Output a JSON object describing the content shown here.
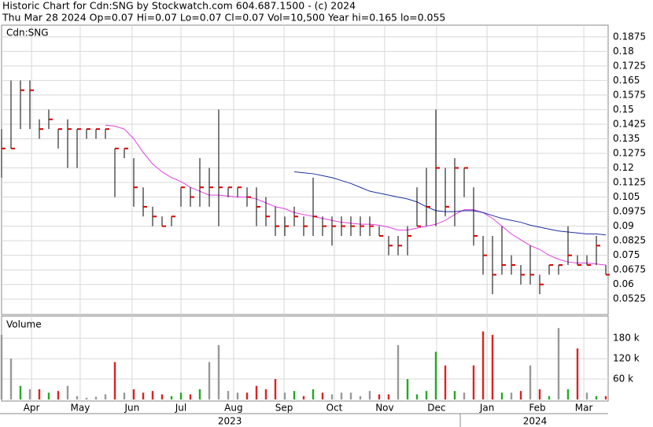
{
  "header": {
    "line1": "Historic Chart for Cdn:SNG by Stockwatch.com 604.687.1500 - (c) 2024",
    "line2": "Thu Mar 28 2024  Op=0.07  Hi=0.07  Lo=0.07  Cl=0.07  Vol=10,500  Year hi=0.165  lo=0.055"
  },
  "chart_data": [
    {
      "type": "ohlc",
      "label": "Cdn:SNG",
      "bar_color": "#000000",
      "close_color": "#dd0000",
      "grid": true,
      "x": [
        0,
        4,
        8,
        12,
        16,
        20,
        24,
        28,
        32,
        36,
        40,
        44,
        48,
        52,
        56,
        60,
        64,
        68,
        72,
        76,
        80,
        84,
        88,
        92,
        96,
        100,
        104,
        108,
        112,
        116,
        120,
        124,
        128,
        132,
        136,
        140,
        144,
        148,
        152,
        156,
        160,
        164,
        168,
        172,
        176,
        180,
        184,
        188,
        192,
        196,
        200,
        204,
        208,
        212,
        216,
        220,
        224,
        228,
        232,
        236,
        240,
        244,
        248,
        252,
        256
      ],
      "high": [
        0.14,
        0.165,
        0.165,
        0.165,
        0.145,
        0.15,
        0.14,
        0.145,
        0.14,
        0.14,
        0.14,
        0.14,
        0.13,
        0.13,
        0.125,
        0.11,
        0.1,
        0.095,
        0.095,
        0.11,
        0.11,
        0.125,
        0.12,
        0.15,
        0.11,
        0.11,
        0.11,
        0.11,
        0.105,
        0.1,
        0.095,
        0.1,
        0.095,
        0.115,
        0.095,
        0.095,
        0.095,
        0.095,
        0.095,
        0.095,
        0.09,
        0.085,
        0.085,
        0.09,
        0.11,
        0.12,
        0.15,
        0.12,
        0.125,
        0.12,
        0.11,
        0.085,
        0.085,
        0.09,
        0.075,
        0.07,
        0.08,
        0.065,
        0.07,
        0.07,
        0.09,
        0.075,
        0.075,
        0.085,
        0.07
      ],
      "low": [
        0.115,
        0.13,
        0.14,
        0.14,
        0.135,
        0.14,
        0.13,
        0.12,
        0.12,
        0.135,
        0.135,
        0.135,
        0.105,
        0.125,
        0.1,
        0.095,
        0.09,
        0.09,
        0.09,
        0.1,
        0.1,
        0.1,
        0.1,
        0.09,
        0.105,
        0.105,
        0.1,
        0.09,
        0.09,
        0.085,
        0.085,
        0.09,
        0.085,
        0.085,
        0.085,
        0.08,
        0.085,
        0.085,
        0.085,
        0.085,
        0.085,
        0.075,
        0.075,
        0.075,
        0.09,
        0.09,
        0.09,
        0.095,
        0.09,
        0.105,
        0.08,
        0.065,
        0.055,
        0.065,
        0.065,
        0.06,
        0.06,
        0.055,
        0.065,
        0.065,
        0.07,
        0.07,
        0.07,
        0.07,
        0.065
      ],
      "close": [
        0.13,
        0.13,
        0.16,
        0.16,
        0.14,
        0.145,
        0.14,
        0.14,
        0.14,
        0.14,
        0.14,
        0.14,
        0.13,
        0.13,
        0.11,
        0.1,
        0.095,
        0.09,
        0.095,
        0.11,
        0.105,
        0.11,
        0.11,
        0.11,
        0.11,
        0.11,
        0.105,
        0.1,
        0.095,
        0.09,
        0.09,
        0.095,
        0.09,
        0.095,
        0.09,
        0.09,
        0.09,
        0.09,
        0.09,
        0.09,
        0.085,
        0.08,
        0.08,
        0.085,
        0.09,
        0.1,
        0.12,
        0.1,
        0.12,
        0.12,
        0.085,
        0.075,
        0.065,
        0.07,
        0.07,
        0.065,
        0.065,
        0.06,
        0.07,
        0.07,
        0.075,
        0.07,
        0.07,
        0.08,
        0.065
      ],
      "moving_averages": [
        {
          "color": "#e040e0",
          "values": [
            null,
            null,
            null,
            null,
            null,
            null,
            null,
            null,
            null,
            null,
            null,
            0.142,
            0.1415,
            0.14,
            0.135,
            0.128,
            0.122,
            0.118,
            0.115,
            0.113,
            0.11,
            0.108,
            0.106,
            0.106,
            0.1055,
            0.105,
            0.105,
            0.104,
            0.102,
            0.1,
            0.099,
            0.097,
            0.096,
            0.095,
            0.094,
            0.093,
            0.092,
            0.0915,
            0.091,
            0.091,
            0.0905,
            0.0895,
            0.088,
            0.088,
            0.089,
            0.09,
            0.091,
            0.093,
            0.096,
            0.0985,
            0.0985,
            0.097,
            0.094,
            0.09,
            0.086,
            0.083,
            0.08,
            0.078,
            0.075,
            0.073,
            0.0715,
            0.071,
            0.071,
            0.0705,
            0.07
          ]
        },
        {
          "color": "#2030a0",
          "values": [
            null,
            null,
            null,
            null,
            null,
            null,
            null,
            null,
            null,
            null,
            null,
            null,
            null,
            null,
            null,
            null,
            null,
            null,
            null,
            null,
            null,
            null,
            null,
            null,
            null,
            null,
            null,
            null,
            null,
            null,
            null,
            0.118,
            0.1175,
            0.117,
            0.116,
            0.115,
            0.1135,
            0.112,
            0.11,
            0.108,
            0.107,
            0.106,
            0.105,
            0.104,
            0.1025,
            0.1,
            0.098,
            0.0975,
            0.0975,
            0.098,
            0.098,
            0.097,
            0.0955,
            0.094,
            0.093,
            0.092,
            0.0905,
            0.0895,
            0.0885,
            0.0875,
            0.087,
            0.0865,
            0.086,
            0.086,
            0.0855
          ]
        }
      ],
      "xlim": [
        0,
        257
      ],
      "xticks": [
        {
          "value": 12.7,
          "label": "Apr"
        },
        {
          "value": 33.3,
          "label": "May"
        },
        {
          "value": 55.3,
          "label": "Jun"
        },
        {
          "value": 76,
          "label": "Jul"
        },
        {
          "value": 98.3,
          "label": "Aug"
        },
        {
          "value": 119.7,
          "label": "Sep"
        },
        {
          "value": 141,
          "label": "Oct"
        },
        {
          "value": 162.3,
          "label": "Nov"
        },
        {
          "value": 184.3,
          "label": "Dec"
        },
        {
          "value": 205.7,
          "label": "Jan"
        },
        {
          "value": 227,
          "label": "Feb"
        },
        {
          "value": 246.7,
          "label": "Mar"
        }
      ],
      "year_labels": [
        {
          "value": 96.7,
          "label": "2023"
        },
        {
          "value": 226,
          "label": "2024"
        }
      ],
      "ylim": [
        0.0445,
        0.1935
      ],
      "yticks": [
        0.0525,
        0.06,
        0.0675,
        0.075,
        0.0825,
        0.09,
        0.0975,
        0.105,
        0.1125,
        0.12,
        0.1275,
        0.135,
        0.1425,
        0.15,
        0.1575,
        0.165,
        0.1725,
        0.18,
        0.1875
      ]
    },
    {
      "type": "bar",
      "label": "Volume",
      "up_color": "#22aa22",
      "down_color": "#dd2222",
      "flat_color": "#999999",
      "values": [
        190000,
        120000,
        40000,
        30000,
        30000,
        20000,
        25000,
        40000,
        10000,
        5000,
        8000,
        15000,
        110000,
        20000,
        30000,
        20000,
        25000,
        15000,
        10000,
        20000,
        15000,
        30000,
        110000,
        160000,
        25000,
        20000,
        20000,
        40000,
        30000,
        60000,
        20000,
        25000,
        10000,
        30000,
        20000,
        15000,
        20000,
        20000,
        10000,
        25000,
        15000,
        15000,
        160000,
        60000,
        15000,
        25000,
        140000,
        100000,
        25000,
        20000,
        100000,
        200000,
        190000,
        20000,
        20000,
        25000,
        100000,
        30000,
        10000,
        210000,
        30000,
        150000,
        20000,
        10000,
        10000
      ],
      "ylim": [
        0,
        245000
      ],
      "yticks": [
        {
          "value": 60000,
          "label": "60 k"
        },
        {
          "value": 120000,
          "label": "120 k"
        },
        {
          "value": 180000,
          "label": "180 k"
        }
      ]
    }
  ]
}
